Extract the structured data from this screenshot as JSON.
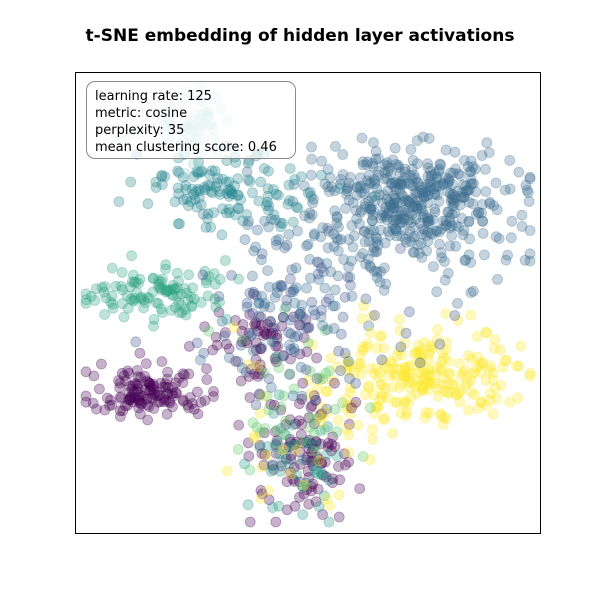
{
  "chart_data": {
    "type": "scatter",
    "title": "t-SNE embedding of hidden layer activations",
    "xlabel": "",
    "ylabel": "",
    "axes_ticks": "none",
    "grid": false,
    "marker_alpha": 0.3,
    "annotation": {
      "placement": "top-left",
      "lines": [
        "learning rate: 125",
        "metric: cosine",
        "perplexity: 35",
        "mean clustering score: 0.46"
      ]
    },
    "colormap": "viridis",
    "clusters": [
      {
        "color": "#3b6e8f",
        "center": [
          392,
          219
        ],
        "spread": [
          58,
          36
        ],
        "count": 480,
        "core_center": [
          420,
          195
        ],
        "core_spread": [
          45,
          22
        ]
      },
      {
        "color": "#fde725",
        "center": [
          420,
          372
        ],
        "spread": [
          48,
          22
        ],
        "count": 230
      },
      {
        "color": "#440154",
        "center": [
          150,
          393
        ],
        "spread": [
          30,
          12
        ],
        "count": 130
      },
      {
        "color": "#440154",
        "center": [
          305,
          460
        ],
        "spread": [
          26,
          32
        ],
        "count": 110
      },
      {
        "color": "#440154",
        "center": [
          265,
          345
        ],
        "spread": [
          28,
          22
        ],
        "count": 70
      },
      {
        "color": "#2ba37e",
        "center": [
          160,
          292
        ],
        "spread": [
          36,
          13
        ],
        "count": 110
      },
      {
        "color": "#26858e",
        "center": [
          225,
          190
        ],
        "spread": [
          42,
          18
        ],
        "count": 130
      },
      {
        "color": "#98d0ce",
        "center": [
          192,
          123
        ],
        "spread": [
          22,
          18
        ],
        "count": 55
      },
      {
        "color": "#23998a",
        "center": [
          300,
          455
        ],
        "spread": [
          24,
          30
        ],
        "count": 45
      },
      {
        "color": "#5dc863",
        "center": [
          290,
          400
        ],
        "spread": [
          38,
          40
        ],
        "count": 40
      },
      {
        "color": "#fde725",
        "center": [
          300,
          420
        ],
        "spread": [
          40,
          50
        ],
        "count": 35
      },
      {
        "color": "#31688e",
        "center": [
          290,
          300
        ],
        "spread": [
          40,
          40
        ],
        "count": 90
      },
      {
        "color": "#3b528b",
        "center": [
          320,
          330
        ],
        "spread": [
          60,
          45
        ],
        "count": 60
      }
    ]
  }
}
